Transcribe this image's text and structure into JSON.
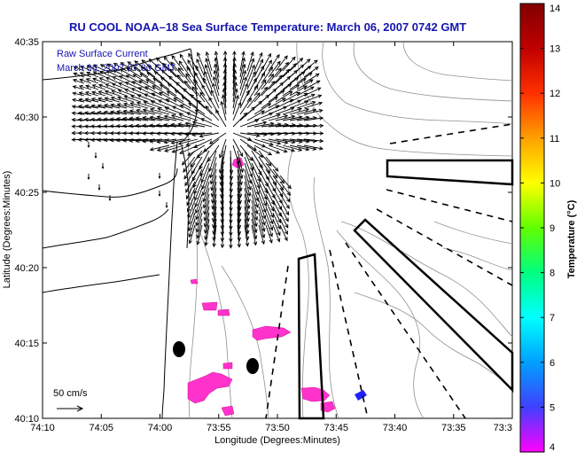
{
  "title": "RU COOL  NOAA–18  Sea Surface Temperature:  March 06, 2007 0742 GMT",
  "legend": {
    "line1": "Raw Surface Current",
    "line2": "March 06, 2007 07:00 GMT"
  },
  "scale": {
    "label": "50 cm/s"
  },
  "axes": {
    "xlabel": "Longitude (Degrees:Minutes)",
    "ylabel": "Latitude (Degrees:Minutes)",
    "x_ticks": [
      "74:10",
      "74:05",
      "74:00",
      "73:55",
      "73:50",
      "73:45",
      "73:40",
      "73:35",
      "73:3"
    ],
    "y_ticks": [
      "40:35",
      "40:30",
      "40:25",
      "40:20",
      "40:15",
      "40:10"
    ],
    "x_range_deg_min": [
      "74:10",
      "73:30"
    ],
    "y_range_deg_min": [
      "40:10",
      "40:35"
    ]
  },
  "colorbar": {
    "label": "Temperature (°C)",
    "min": 4,
    "max": 14,
    "ticks": [
      "4",
      "5",
      "6",
      "7",
      "8",
      "9",
      "10",
      "11",
      "12",
      "13",
      "14"
    ],
    "colors": [
      "#ff00ff",
      "#4040ff",
      "#00a0ff",
      "#00ffff",
      "#00ff80",
      "#60ff00",
      "#ffff00",
      "#ffa000",
      "#ff3000",
      "#c00000",
      "#800000"
    ]
  },
  "colors": {
    "title": "#1515b0",
    "sst_patch": "#ff33cc",
    "cold_patch": "#2020ff",
    "land_fill": "#ffffff",
    "contours": "#808080"
  },
  "markers": {
    "station_dots": 2
  }
}
